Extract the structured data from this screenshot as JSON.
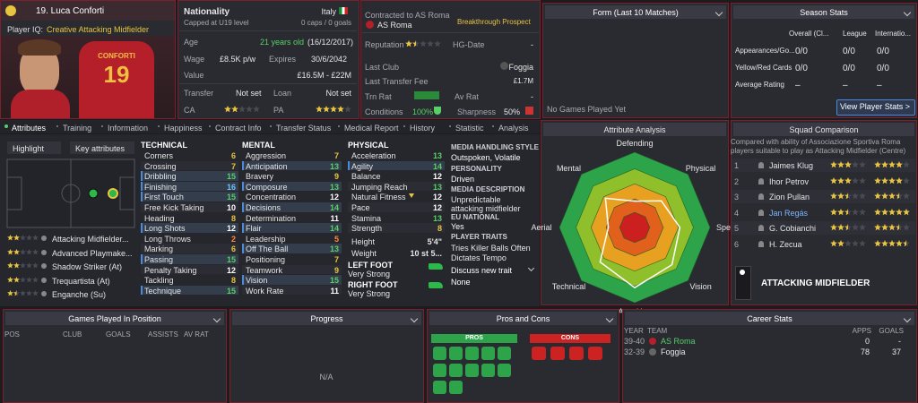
{
  "player": {
    "name": "19. Luca Conforti",
    "iq_label": "Player IQ:",
    "iq": "Creative Attacking Midfielder",
    "shirt_name": "CONFORTI",
    "shirt_number": "19"
  },
  "info": {
    "nationality_label": "Nationality",
    "nationality": "Italy",
    "capped": "Capped at U19 level",
    "caps": "0 caps / 0 goals",
    "age_label": "Age",
    "age": "21 years old",
    "dob": "(16/12/2017)",
    "wage_label": "Wage",
    "wage": "£8.5K p/w",
    "expires_label": "Expires",
    "expires": "30/6/2042",
    "value_label": "Value",
    "value": "£16.5M - £22M",
    "transfer_label": "Transfer",
    "transfer": "Not set",
    "loan_label": "Loan",
    "loan": "Not set",
    "ca_label": "CA",
    "ca_stars": 2,
    "pa_label": "PA",
    "pa_stars": 4
  },
  "contract": {
    "contracted": "Contracted to AS Roma",
    "status": "Breakthrough Prospect",
    "club": "AS Roma",
    "reputation_label": "Reputation",
    "reputation_stars": 1.5,
    "hg_label": "HG-Date",
    "hg": "-",
    "last_club_label": "Last Club",
    "last_club": "Foggia",
    "fee_label": "Last Transfer Fee",
    "fee": "£1.7M",
    "trn_label": "Trn Rat",
    "av_label": "Av Rat",
    "av": "-",
    "conditions_label": "Conditions",
    "conditions": "100%",
    "sharpness_label": "Sharpness",
    "sharpness": "50%"
  },
  "form": {
    "title": "Form (Last 10 Matches)",
    "empty": "No Games Played Yet"
  },
  "season": {
    "title": "Season Stats",
    "columns": [
      "Overall (Cl...",
      "League",
      "Internatio..."
    ],
    "rows": [
      {
        "label": "Appearances/Go...",
        "cells": [
          "0/0",
          "0/0",
          "0/0"
        ]
      },
      {
        "label": "Yellow/Red Cards",
        "cells": [
          "0/0",
          "0/0",
          "0/0"
        ]
      },
      {
        "label": "Average Rating",
        "cells": [
          "–",
          "–",
          "–"
        ]
      }
    ],
    "button": "View Player Stats >"
  },
  "tabs": [
    "Attributes",
    "Training",
    "Information",
    "Happiness",
    "Contract Info",
    "Transfer Status",
    "Medical Report",
    "History",
    "Statistic",
    "Analysis"
  ],
  "attributes": {
    "highlight": "Highlight",
    "key_filter": "Key attributes",
    "positions": [
      {
        "name": "Attacking Midfielder...",
        "stars": 2
      },
      {
        "name": "Advanced Playmake...",
        "stars": 2
      },
      {
        "name": "Shadow Striker (At)",
        "stars": 2
      },
      {
        "name": "Trequartista (At)",
        "stars": 2
      },
      {
        "name": "Enganche (Su)",
        "stars": 1.5
      }
    ],
    "technical_title": "TECHNICAL",
    "technical": [
      {
        "name": "Corners",
        "value": 6,
        "key": false
      },
      {
        "name": "Crossing",
        "value": 7,
        "key": false
      },
      {
        "name": "Dribbling",
        "value": 15,
        "key": true
      },
      {
        "name": "Finishing",
        "value": 16,
        "key": true
      },
      {
        "name": "First Touch",
        "value": 15,
        "key": true
      },
      {
        "name": "Free Kick Taking",
        "value": 10,
        "key": false
      },
      {
        "name": "Heading",
        "value": 8,
        "key": false
      },
      {
        "name": "Long Shots",
        "value": 12,
        "key": true
      },
      {
        "name": "Long Throws",
        "value": 2,
        "key": false
      },
      {
        "name": "Marking",
        "value": 6,
        "key": false
      },
      {
        "name": "Passing",
        "value": 15,
        "key": true
      },
      {
        "name": "Penalty Taking",
        "value": 12,
        "key": false
      },
      {
        "name": "Tackling",
        "value": 8,
        "key": false
      },
      {
        "name": "Technique",
        "value": 15,
        "key": true
      }
    ],
    "mental_title": "MENTAL",
    "mental": [
      {
        "name": "Aggression",
        "value": 7,
        "key": false
      },
      {
        "name": "Anticipation",
        "value": 13,
        "key": true
      },
      {
        "name": "Bravery",
        "value": 9,
        "key": false
      },
      {
        "name": "Composure",
        "value": 13,
        "key": true
      },
      {
        "name": "Concentration",
        "value": 12,
        "key": false
      },
      {
        "name": "Decisions",
        "value": 14,
        "key": true
      },
      {
        "name": "Determination",
        "value": 11,
        "key": false
      },
      {
        "name": "Flair",
        "value": 14,
        "key": true
      },
      {
        "name": "Leadership",
        "value": 5,
        "key": false
      },
      {
        "name": "Off The Ball",
        "value": 13,
        "key": true
      },
      {
        "name": "Positioning",
        "value": 7,
        "key": false
      },
      {
        "name": "Teamwork",
        "value": 9,
        "key": false
      },
      {
        "name": "Vision",
        "value": 15,
        "key": true
      },
      {
        "name": "Work Rate",
        "value": 11,
        "key": false
      }
    ],
    "physical_title": "PHYSICAL",
    "physical": [
      {
        "name": "Acceleration",
        "value": 13,
        "key": false
      },
      {
        "name": "Agility",
        "value": 14,
        "key": true
      },
      {
        "name": "Balance",
        "value": 12,
        "key": false
      },
      {
        "name": "Jumping Reach",
        "value": 13,
        "key": false
      },
      {
        "name": "Natural Fitness",
        "value": 12,
        "key": false
      },
      {
        "name": "Pace",
        "value": 12,
        "key": false
      },
      {
        "name": "Stamina",
        "value": 13,
        "key": false
      },
      {
        "name": "Strength",
        "value": 8,
        "key": false
      }
    ],
    "height_label": "Height",
    "height": "5'4\"",
    "weight_label": "Weight",
    "weight": "10 st 5...",
    "left_foot_label": "LEFT FOOT",
    "left_foot": "Very Strong",
    "right_foot_label": "RIGHT FOOT",
    "right_foot": "Very Strong"
  },
  "profile": {
    "media_style_label": "MEDIA HANDLING STYLE",
    "media_style": "Outspoken, Volatile",
    "personality_label": "PERSONALITY",
    "personality": "Driven",
    "media_desc_label": "MEDIA DESCRIPTION",
    "media_desc": "Unpredictable attacking midfielder",
    "eu_label": "EU NATIONAL",
    "eu": "Yes",
    "traits_label": "PLAYER TRAITS",
    "traits": [
      "Tries Killer Balls Often",
      "Dictates Tempo"
    ],
    "discuss": "Discuss new trait",
    "discuss_value": "None"
  },
  "analysis": {
    "title": "Attribute Analysis",
    "axes": [
      "Defending",
      "Physical",
      "Speed",
      "Vision",
      "Attacking",
      "Technical",
      "Aerial",
      "Mental"
    ],
    "values": [
      7,
      10,
      12,
      14,
      16,
      13,
      7,
      11
    ],
    "rlim": [
      0,
      20
    ]
  },
  "squad": {
    "title": "Squad Comparison",
    "description": "Compared with ability of Associazione Sportiva Roma players suitable to play as Attacking Midfielder (Centre)",
    "players": [
      {
        "rank": "1",
        "name": "Jaimes Klug",
        "ca": 3,
        "pa": 4
      },
      {
        "rank": "2",
        "name": "Ihor Petrov",
        "ca": 3,
        "pa": 4
      },
      {
        "rank": "3",
        "name": "Zion Pullan",
        "ca": 2.5,
        "pa": 3.5
      },
      {
        "rank": "4",
        "name": "Jan Regás",
        "ca": 2.5,
        "pa": 5
      },
      {
        "rank": "5",
        "name": "G. Cobianchi",
        "ca": 2.5,
        "pa": 3.5
      },
      {
        "rank": "6",
        "name": "H. Zecua",
        "ca": 2,
        "pa": 4.5
      }
    ],
    "role": "ATTACKING MIDFIELDER"
  },
  "games": {
    "title": "Games Played In Position",
    "columns": [
      "POS",
      "CLUB",
      "GOALS",
      "ASSISTS",
      "AV RAT"
    ]
  },
  "progress": {
    "title": "Progress",
    "empty": "N/A"
  },
  "pros_cons": {
    "title": "Pros and Cons",
    "pros": "PROS",
    "cons": "CONS"
  },
  "career": {
    "title": "Career Stats",
    "columns": [
      "YEAR",
      "TEAM",
      "APPS",
      "GOALS"
    ],
    "rows": [
      [
        "39-40",
        "AS Roma",
        "0",
        "-"
      ],
      [
        "32-39",
        "Foggia",
        "78",
        "37"
      ]
    ]
  }
}
